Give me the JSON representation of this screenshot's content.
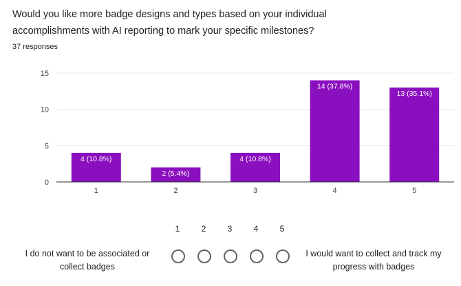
{
  "question": {
    "title": "Would you like more badge designs and types based on your individual accomplishments with AI reporting to mark your specific milestones?",
    "responses": "37 responses"
  },
  "chart_data": {
    "type": "bar",
    "categories": [
      "1",
      "2",
      "3",
      "4",
      "5"
    ],
    "values": [
      4,
      2,
      4,
      14,
      13
    ],
    "data_labels": [
      "4 (10.8%)",
      "2 (5.4%)",
      "4 (10.8%)",
      "14 (37.8%)",
      "13 (35.1%)"
    ],
    "yticks": [
      0,
      5,
      10,
      15
    ],
    "ylim": [
      0,
      15
    ],
    "grid": true,
    "title": "",
    "xlabel": "",
    "ylabel": "",
    "bar_color": "#8a0fbf",
    "grid_color": "#e8e8e8",
    "axis_color": "#333333"
  },
  "scale": {
    "numbers": [
      "1",
      "2",
      "3",
      "4",
      "5"
    ],
    "low_label": "I do not want to be associated or collect badges",
    "high_label": "I would want to collect and track my progress with badges"
  }
}
